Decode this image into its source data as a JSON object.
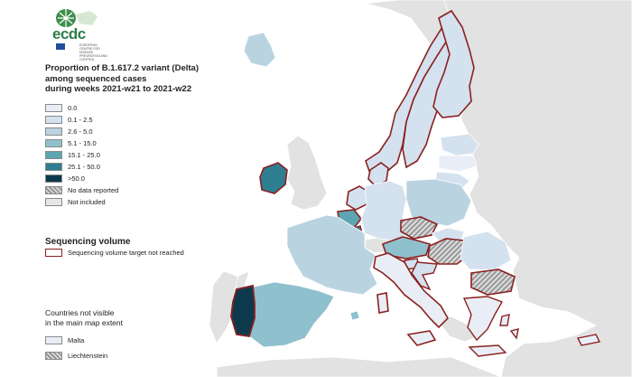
{
  "header": {
    "logo_text": "ecdc",
    "logo_subtext": "EUROPEAN CENTRE FOR DISEASE PREVENTION AND CONTROL"
  },
  "legend": {
    "title_lines": [
      "Proportion of B.1.617.2 variant (Delta)",
      "among sequenced cases",
      "during weeks 2021-w21 to 2021-w22"
    ],
    "classes": [
      {
        "label": "0.0",
        "color": "#e9eef6"
      },
      {
        "label": "0.1 - 2.5",
        "color": "#d4e1ef"
      },
      {
        "label": "2.6 - 5.0",
        "color": "#b9d3e1"
      },
      {
        "label": "5.1 - 15.0",
        "color": "#8fc0cd"
      },
      {
        "label": "15.1 - 25.0",
        "color": "#5da5b3"
      },
      {
        "label": "25.1 - 50.0",
        "color": "#2e7e91"
      },
      {
        "label": ">50.0",
        "color": "#0c3a4c"
      },
      {
        "label": "No data reported",
        "color": "hatch"
      },
      {
        "label": "Not included",
        "color": "#e6e6e6"
      }
    ]
  },
  "sequencing": {
    "title": "Sequencing volume",
    "label": "Sequencing volume target not reached",
    "border_color": "#8b2020"
  },
  "not_visible": {
    "title_lines": [
      "Countries not visible",
      "in the main map extent"
    ],
    "items": [
      {
        "label": "Malta",
        "color": "#e9eef6"
      },
      {
        "label": "Liechtenstein",
        "color": "hatch"
      }
    ]
  },
  "colors": {
    "sea": "#ffffff",
    "not_included": "#e2e2e2",
    "country_border": "#ffffff"
  }
}
